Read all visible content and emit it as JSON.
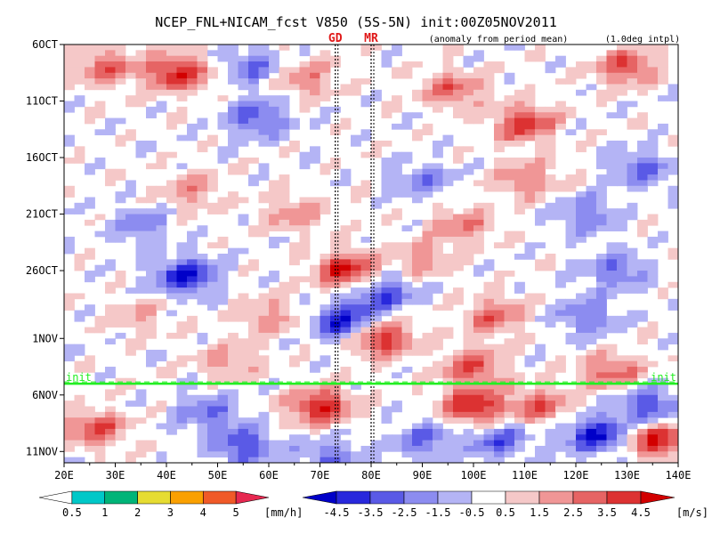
{
  "chart_data": {
    "type": "heatmap",
    "title": "NCEP_FNL+NICAM_fcst V850 (5S-5N) init:00Z05NOV2011",
    "subtitle": "(anomaly from period mean)",
    "note": "(1.0deg intpl)",
    "x_range": [
      20,
      140
    ],
    "x_ticks": [
      20,
      30,
      40,
      50,
      60,
      70,
      80,
      90,
      100,
      110,
      120,
      130,
      140
    ],
    "x_tick_labels": [
      "20E",
      "30E",
      "40E",
      "50E",
      "60E",
      "70E",
      "80E",
      "90E",
      "100E",
      "110E",
      "120E",
      "130E",
      "140E"
    ],
    "y_range_days": [
      6,
      43
    ],
    "y_ticks": [
      6,
      11,
      16,
      21,
      26,
      32,
      37,
      42
    ],
    "y_tick_labels": [
      "6OCT",
      "11OCT",
      "16OCT",
      "21OCT",
      "26OCT",
      "1NOV",
      "6NOV",
      "11NOV"
    ],
    "markers": [
      {
        "label": "GD",
        "lon": 73,
        "color": "#e01818"
      },
      {
        "label": "MR",
        "lon": 80,
        "color": "#e01818"
      }
    ],
    "init_line": {
      "label": "init",
      "day": 36,
      "color": "#22ee22"
    },
    "rain_colorbar": {
      "unit": "[mm/h]",
      "levels": [
        "0.5",
        "1",
        "2",
        "3",
        "4",
        "5"
      ],
      "colors": [
        "#ffffff",
        "#00c8c8",
        "#00b478",
        "#e6dc32",
        "#faa000",
        "#f05a28",
        "#e62850"
      ]
    },
    "wind_colorbar": {
      "unit": "[m/s]",
      "levels": [
        "-4.5",
        "-3.5",
        "-2.5",
        "-1.5",
        "-0.5",
        "0.5",
        "1.5",
        "2.5",
        "3.5",
        "4.5"
      ],
      "colors": [
        "#0000c8",
        "#2828dc",
        "#5a5ae6",
        "#8c8cf0",
        "#b4b4f5",
        "#ffffff",
        "#f5c8c8",
        "#f09696",
        "#e66464",
        "#dc3232",
        "#d20000"
      ]
    },
    "anomaly_features": [
      {
        "lon": 42,
        "day": 8.5,
        "value": 4.5
      },
      {
        "lon": 28,
        "day": 8,
        "value": 3
      },
      {
        "lon": 57,
        "day": 8,
        "value": -2.5
      },
      {
        "lon": 67,
        "day": 9,
        "value": 2.5
      },
      {
        "lon": 96,
        "day": 10,
        "value": 3
      },
      {
        "lon": 110,
        "day": 13,
        "value": 4
      },
      {
        "lon": 130,
        "day": 8,
        "value": 3.5
      },
      {
        "lon": 58,
        "day": 12.5,
        "value": -3
      },
      {
        "lon": 133,
        "day": 17,
        "value": -2.5
      },
      {
        "lon": 90,
        "day": 18,
        "value": -2
      },
      {
        "lon": 45,
        "day": 19,
        "value": 2
      },
      {
        "lon": 110,
        "day": 18,
        "value": 2.5
      },
      {
        "lon": 65,
        "day": 21,
        "value": 2
      },
      {
        "lon": 98,
        "day": 22,
        "value": 2.5
      },
      {
        "lon": 122,
        "day": 21,
        "value": -2.5
      },
      {
        "lon": 35,
        "day": 22,
        "value": -2
      },
      {
        "lon": 44,
        "day": 26.5,
        "value": -4.5
      },
      {
        "lon": 75,
        "day": 26,
        "value": 4.5
      },
      {
        "lon": 90,
        "day": 25,
        "value": 2
      },
      {
        "lon": 128,
        "day": 26,
        "value": -2.5
      },
      {
        "lon": 75,
        "day": 30.5,
        "value": -4.5
      },
      {
        "lon": 82,
        "day": 28,
        "value": -3.5
      },
      {
        "lon": 82,
        "day": 32,
        "value": 4.5
      },
      {
        "lon": 60,
        "day": 30,
        "value": 2
      },
      {
        "lon": 34,
        "day": 30,
        "value": 1.5
      },
      {
        "lon": 104,
        "day": 30,
        "value": 3
      },
      {
        "lon": 122,
        "day": 30,
        "value": -2.5
      },
      {
        "lon": 100,
        "day": 34.5,
        "value": 3.5
      },
      {
        "lon": 127,
        "day": 35,
        "value": 3
      },
      {
        "lon": 52,
        "day": 34,
        "value": 2
      },
      {
        "lon": 70,
        "day": 38,
        "value": 4.5
      },
      {
        "lon": 48,
        "day": 38.5,
        "value": -2.5
      },
      {
        "lon": 100,
        "day": 38,
        "value": 4.5
      },
      {
        "lon": 113,
        "day": 38,
        "value": 3
      },
      {
        "lon": 134,
        "day": 38,
        "value": -3.5
      },
      {
        "lon": 26,
        "day": 40,
        "value": 3.5
      },
      {
        "lon": 55,
        "day": 41.5,
        "value": -3.5
      },
      {
        "lon": 72,
        "day": 42.5,
        "value": -2.5
      },
      {
        "lon": 90,
        "day": 41,
        "value": -2.5
      },
      {
        "lon": 105,
        "day": 41,
        "value": -3
      },
      {
        "lon": 124,
        "day": 40.5,
        "value": -4.5
      },
      {
        "lon": 136,
        "day": 41,
        "value": 4.5
      }
    ]
  }
}
